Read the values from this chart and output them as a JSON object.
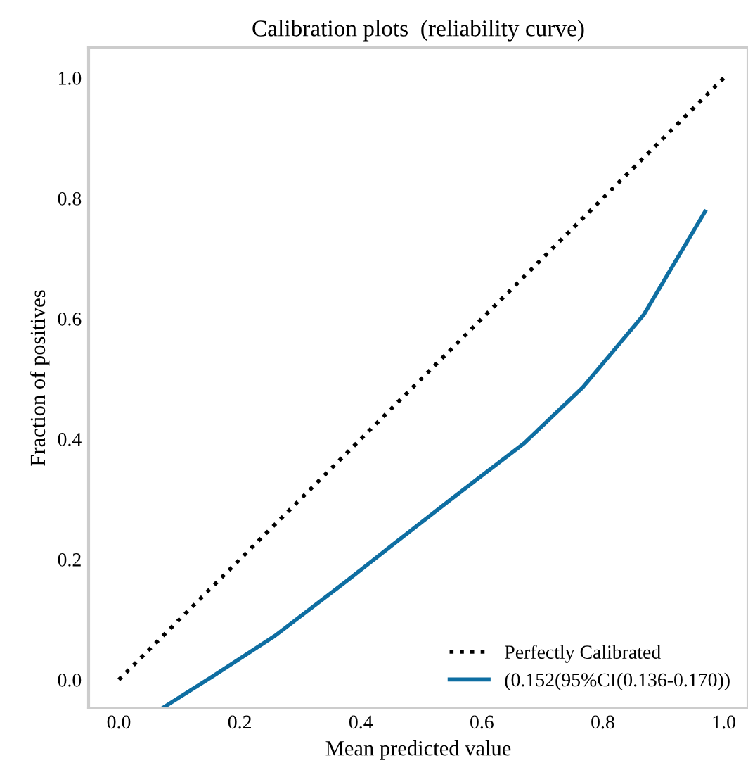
{
  "chart_data": {
    "type": "line",
    "title": "Calibration plots  (reliability curve)",
    "xlabel": "Mean predicted value",
    "ylabel": "Fraction of positives",
    "series": [
      {
        "name": "Perfectly Calibrated",
        "color": "#000000",
        "line_style": "dotted",
        "x": [
          0,
          1
        ],
        "values": [
          0,
          1
        ]
      },
      {
        "name": "(0.152(95%CI(0.136-0.170))",
        "color": "#0e6ea2",
        "line_style": "solid",
        "x": [
          0.072,
          0.157,
          0.258,
          0.375,
          0.456,
          0.553,
          0.67,
          0.767,
          0.868,
          0.969
        ],
        "values": [
          -0.047,
          0.007,
          0.073,
          0.163,
          0.227,
          0.303,
          0.393,
          0.486,
          0.607,
          0.778
        ]
      }
    ],
    "xlim": [
      -0.05,
      1.04
    ],
    "ylim": [
      -0.047,
      1.05
    ],
    "xticks": [
      {
        "value": 0,
        "label": "0.0"
      },
      0.2,
      0.4,
      0.6,
      0.8,
      {
        "value": 1,
        "label": "1.0"
      }
    ],
    "yticks": [
      {
        "value": 0,
        "label": "0.0"
      },
      0.2,
      0.4,
      0.6,
      0.8,
      {
        "value": 1,
        "label": "1.0"
      }
    ],
    "grid": false,
    "legend": "bottom right",
    "marker": "none"
  }
}
